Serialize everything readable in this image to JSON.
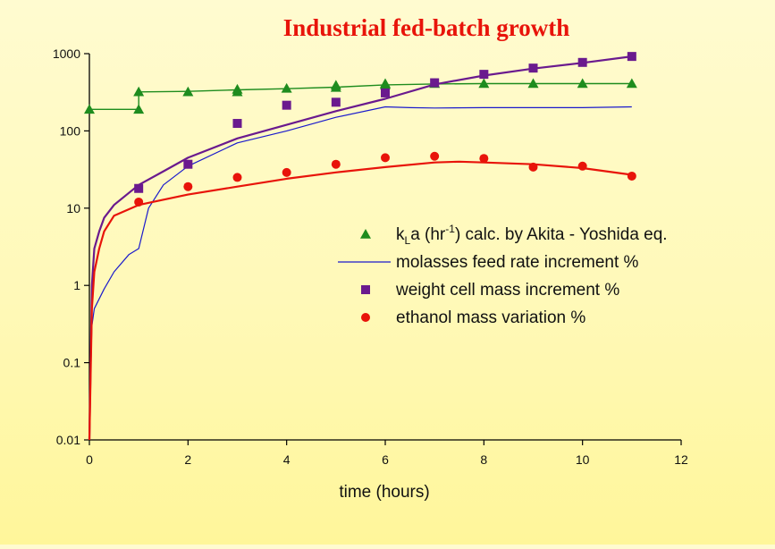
{
  "chart_data": {
    "type": "scatter",
    "title": "Industrial fed-batch growth",
    "title_color": "#e8140a",
    "xlabel": "time (hours)",
    "ylabel": "",
    "xlim": [
      0,
      12
    ],
    "ylim": [
      0.01,
      1000
    ],
    "yscale": "log",
    "grid": false,
    "legend_position": "right-center",
    "x_ticks": [
      "0",
      "2",
      "4",
      "6",
      "8",
      "10",
      "12"
    ],
    "y_ticks": [
      "0.01",
      "0.1",
      "1",
      "10",
      "100",
      "1000"
    ],
    "series": [
      {
        "name": "kLa (hr-1) calc. by Akita - Yoshida eq.",
        "legend_parts": {
          "k": "k",
          "sub": "L",
          "mid": "a (hr",
          "sup": "-1",
          "rest": ") calc. by Akita - Yoshida eq."
        },
        "marker": "triangle",
        "color": "#1e8c1e",
        "points": [
          [
            0,
            190
          ],
          [
            1,
            190
          ],
          [
            1,
            320
          ],
          [
            2,
            320
          ],
          [
            3,
            320
          ],
          [
            3,
            345
          ],
          [
            4,
            355
          ],
          [
            5,
            365
          ],
          [
            5,
            390
          ],
          [
            6,
            395
          ],
          [
            6,
            410
          ],
          [
            7,
            410
          ],
          [
            8,
            410
          ],
          [
            9,
            410
          ],
          [
            10,
            410
          ],
          [
            11,
            410
          ]
        ],
        "line": [
          [
            0,
            190
          ],
          [
            1,
            190
          ],
          [
            1,
            320
          ],
          [
            2,
            325
          ],
          [
            3,
            340
          ],
          [
            4,
            352
          ],
          [
            5,
            368
          ],
          [
            6,
            395
          ],
          [
            7,
            405
          ],
          [
            8,
            410
          ],
          [
            9,
            410
          ],
          [
            10,
            410
          ],
          [
            11,
            410
          ]
        ]
      },
      {
        "name": "molasses feed rate increment %",
        "marker": "line",
        "color": "#1a1acc",
        "line": [
          [
            0,
            0.01
          ],
          [
            0.02,
            0.05
          ],
          [
            0.05,
            0.3
          ],
          [
            0.1,
            0.5
          ],
          [
            0.3,
            0.9
          ],
          [
            0.5,
            1.5
          ],
          [
            0.8,
            2.5
          ],
          [
            1,
            3
          ],
          [
            1.2,
            10
          ],
          [
            1.5,
            20
          ],
          [
            2,
            35
          ],
          [
            3,
            70
          ],
          [
            4,
            100
          ],
          [
            5,
            150
          ],
          [
            6,
            205
          ],
          [
            6.5,
            200
          ],
          [
            7,
            198
          ],
          [
            8,
            200
          ],
          [
            9,
            200
          ],
          [
            10,
            200
          ],
          [
            11,
            205
          ]
        ]
      },
      {
        "name": "weight cell mass increment %",
        "marker": "square",
        "color": "#6a1a8e",
        "points": [
          [
            1,
            18
          ],
          [
            2,
            37
          ],
          [
            3,
            125
          ],
          [
            4,
            215
          ],
          [
            5,
            235
          ],
          [
            6,
            310
          ],
          [
            7,
            420
          ],
          [
            8,
            540
          ],
          [
            9,
            650
          ],
          [
            10,
            770
          ],
          [
            11,
            920
          ]
        ],
        "line": [
          [
            0,
            0.01
          ],
          [
            0.05,
            1
          ],
          [
            0.1,
            3
          ],
          [
            0.2,
            5
          ],
          [
            0.3,
            7.5
          ],
          [
            0.5,
            11
          ],
          [
            1,
            20
          ],
          [
            1.5,
            30
          ],
          [
            2,
            45
          ],
          [
            3,
            80
          ],
          [
            4,
            120
          ],
          [
            5,
            180
          ],
          [
            6,
            260
          ],
          [
            7,
            400
          ],
          [
            8,
            520
          ],
          [
            9,
            640
          ],
          [
            10,
            760
          ],
          [
            11,
            920
          ]
        ]
      },
      {
        "name": "ethanol mass variation %",
        "marker": "circle",
        "color": "#e8140a",
        "points": [
          [
            1,
            12
          ],
          [
            2,
            19
          ],
          [
            3,
            25
          ],
          [
            4,
            29
          ],
          [
            5,
            37
          ],
          [
            6,
            45
          ],
          [
            7,
            47
          ],
          [
            8,
            44
          ],
          [
            9,
            34
          ],
          [
            10,
            35
          ],
          [
            11,
            26
          ]
        ],
        "line": [
          [
            0,
            0.01
          ],
          [
            0.05,
            0.5
          ],
          [
            0.1,
            1.5
          ],
          [
            0.2,
            3
          ],
          [
            0.3,
            5
          ],
          [
            0.5,
            8
          ],
          [
            1,
            11
          ],
          [
            2,
            15
          ],
          [
            3,
            19
          ],
          [
            4,
            24
          ],
          [
            5,
            29
          ],
          [
            6,
            34
          ],
          [
            7,
            39
          ],
          [
            7.5,
            40
          ],
          [
            8,
            39
          ],
          [
            9,
            37
          ],
          [
            10,
            33
          ],
          [
            11,
            27
          ]
        ]
      }
    ]
  }
}
